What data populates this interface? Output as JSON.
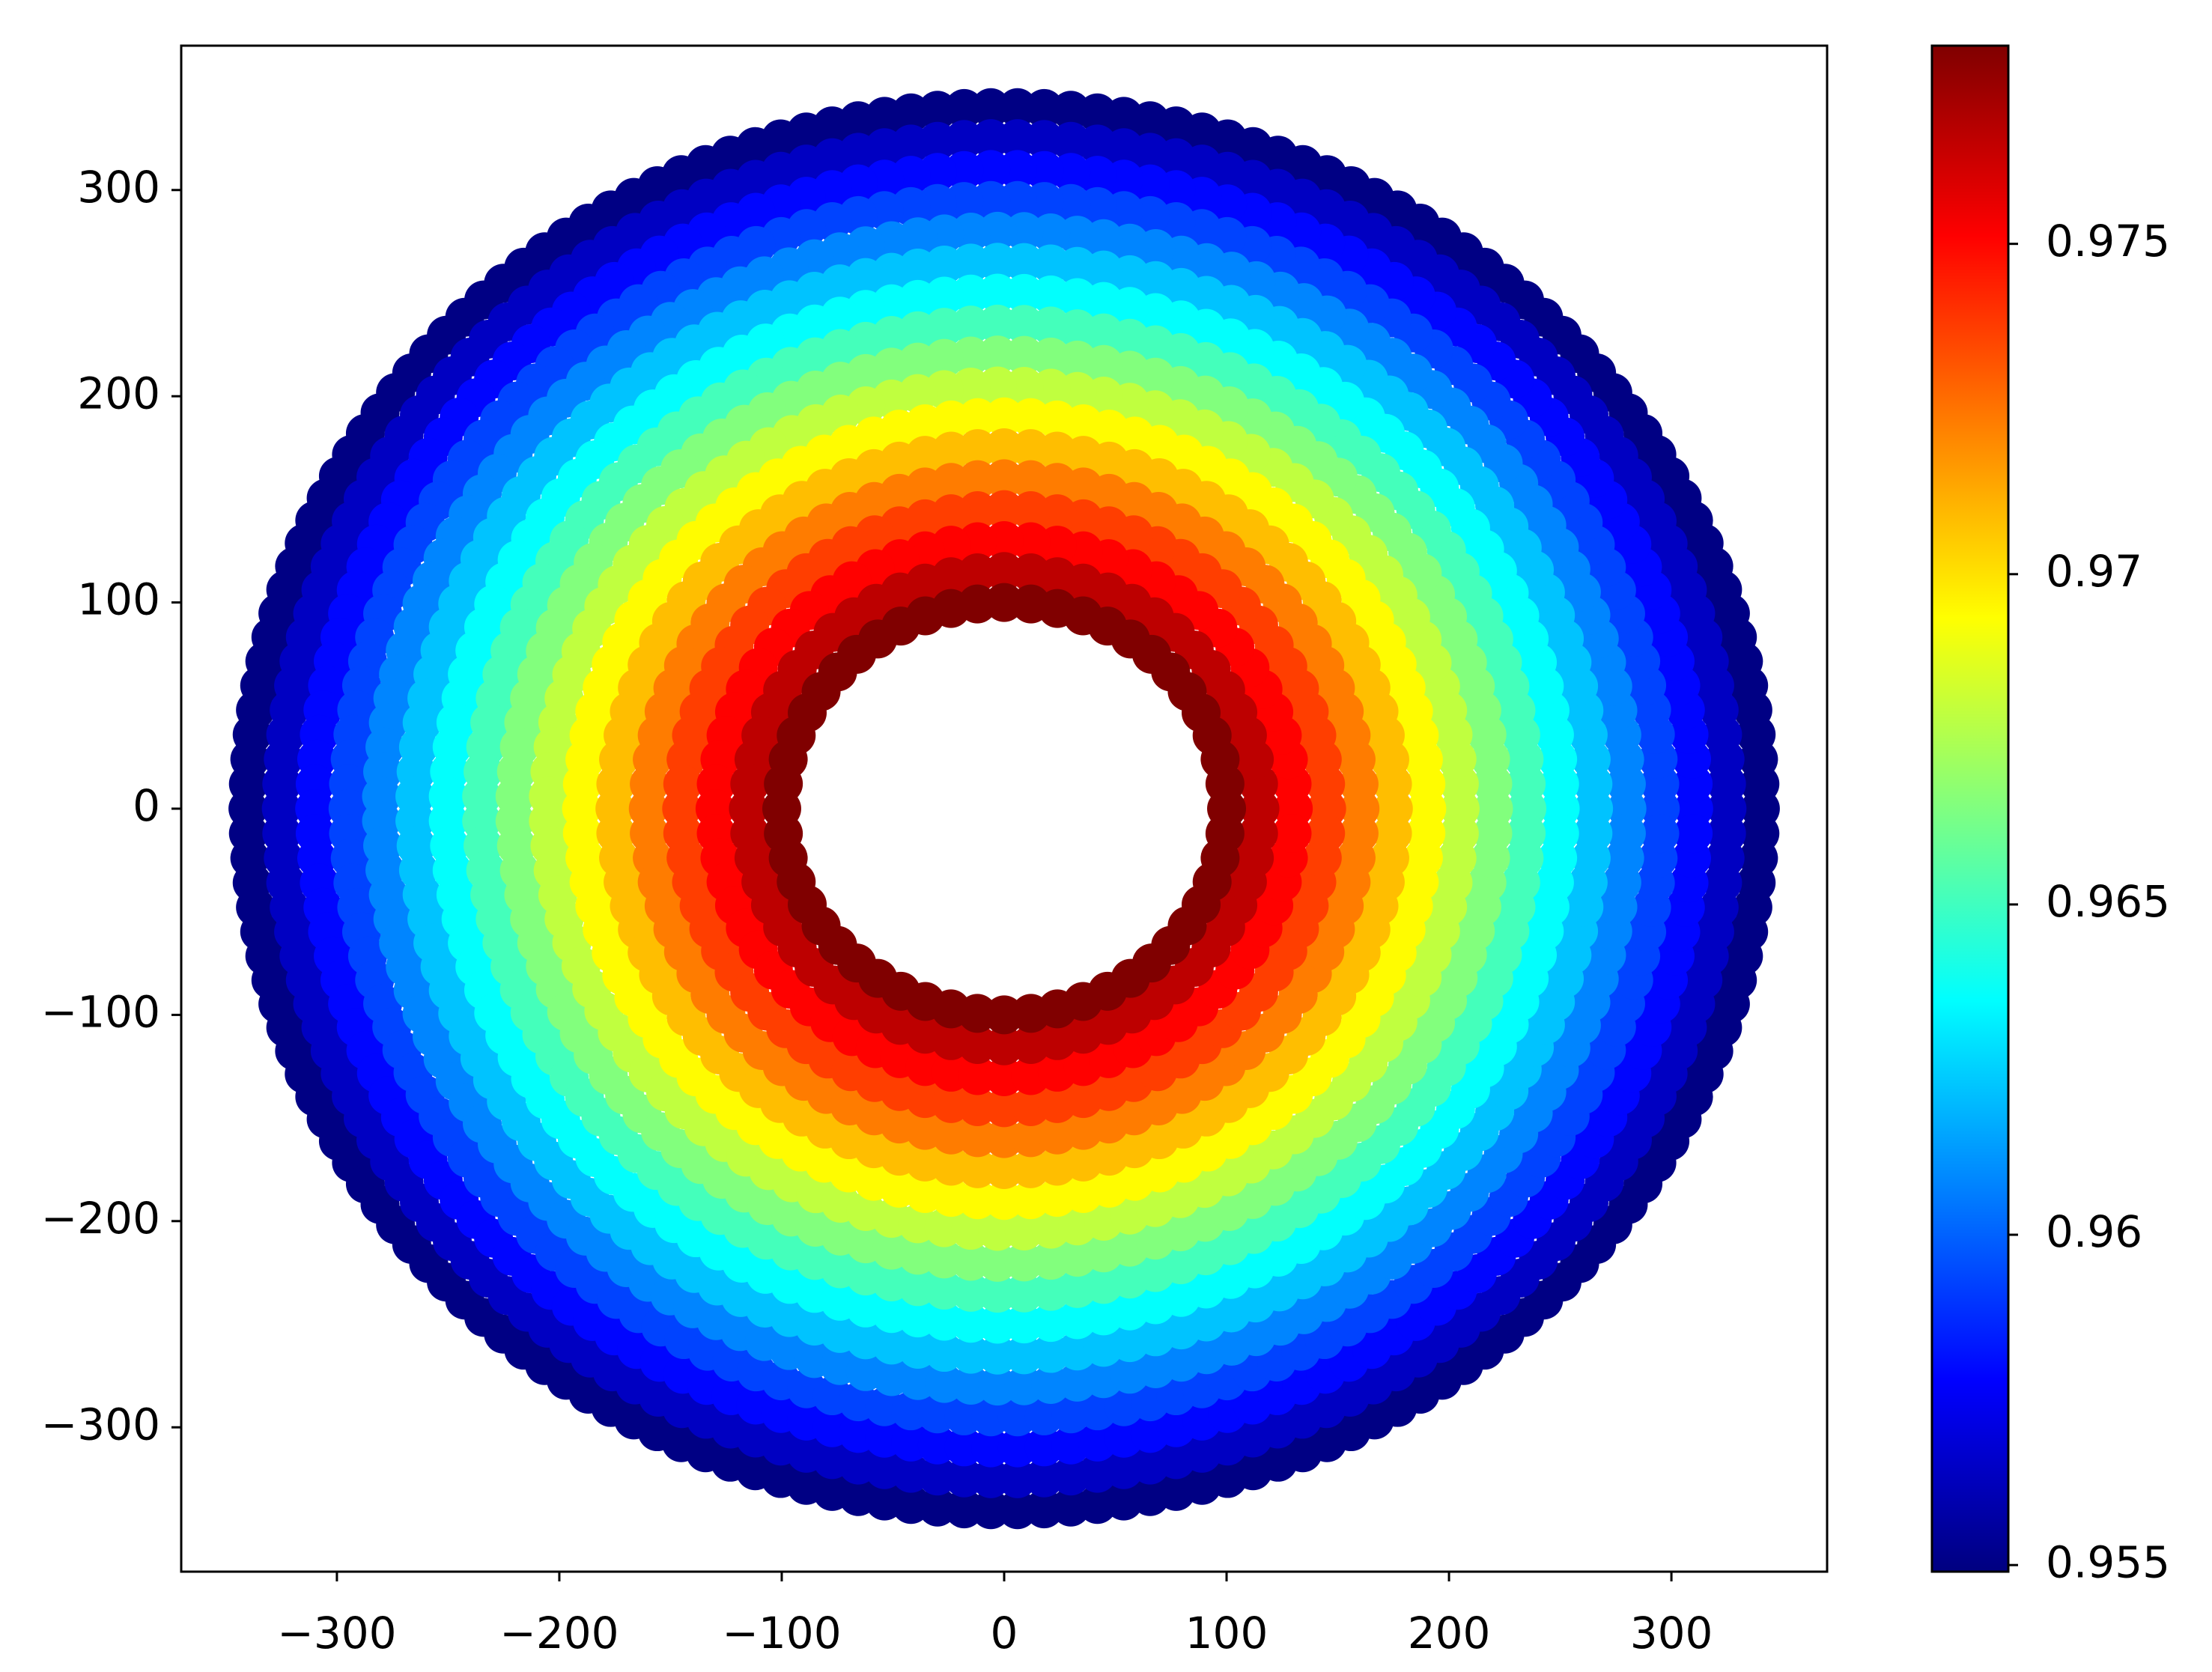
{
  "chart_data": {
    "type": "scatter",
    "colormap": "jet",
    "rings": [
      {
        "r": 100,
        "value": 0.978,
        "n": 52
      },
      {
        "r": 115,
        "value": 0.9766,
        "n": 60
      },
      {
        "r": 130,
        "value": 0.9751,
        "n": 68
      },
      {
        "r": 145,
        "value": 0.9737,
        "n": 76
      },
      {
        "r": 160,
        "value": 0.9723,
        "n": 84
      },
      {
        "r": 175,
        "value": 0.9708,
        "n": 92
      },
      {
        "r": 190,
        "value": 0.9694,
        "n": 100
      },
      {
        "r": 205,
        "value": 0.9679,
        "n": 107
      },
      {
        "r": 220,
        "value": 0.9665,
        "n": 115
      },
      {
        "r": 235,
        "value": 0.9651,
        "n": 123
      },
      {
        "r": 250,
        "value": 0.9636,
        "n": 131
      },
      {
        "r": 265,
        "value": 0.9622,
        "n": 139
      },
      {
        "r": 280,
        "value": 0.9608,
        "n": 147
      },
      {
        "r": 295,
        "value": 0.9593,
        "n": 154
      },
      {
        "r": 310,
        "value": 0.9579,
        "n": 162
      },
      {
        "r": 325,
        "value": 0.9564,
        "n": 170
      },
      {
        "r": 340,
        "value": 0.955,
        "n": 178
      }
    ],
    "xlim": [
      -370,
      370
    ],
    "ylim": [
      -370,
      370
    ],
    "xticks": [
      {
        "value": -300,
        "label": "−300"
      },
      {
        "value": -200,
        "label": "−200"
      },
      {
        "value": -100,
        "label": "−100"
      },
      0,
      100,
      200,
      300
    ],
    "yticks": [
      {
        "value": -300,
        "label": "−300"
      },
      {
        "value": -200,
        "label": "−200"
      },
      {
        "value": -100,
        "label": "−100"
      },
      0,
      100,
      200,
      300
    ],
    "clim": [
      0.9549,
      0.978
    ],
    "cticks": [
      0.955,
      0.96,
      0.965,
      0.97,
      0.975
    ]
  }
}
